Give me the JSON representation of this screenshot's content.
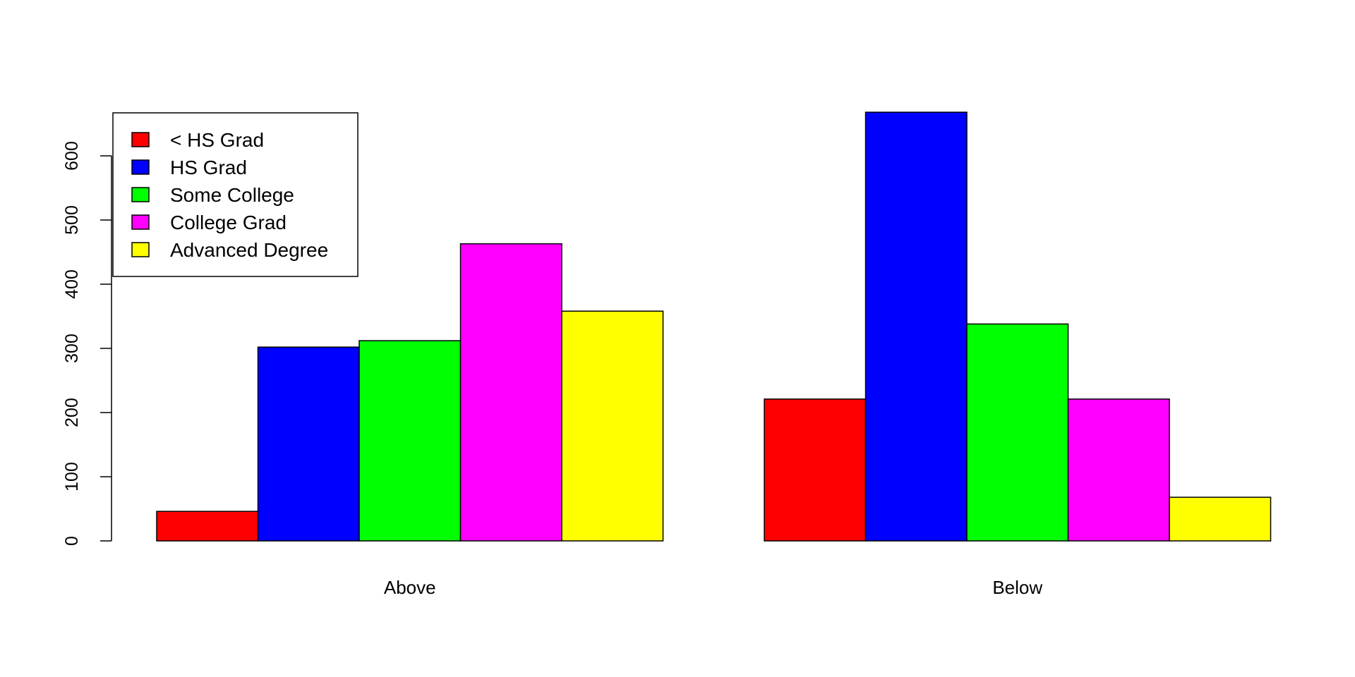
{
  "chart_data": {
    "type": "bar",
    "mode": "grouped",
    "categories": [
      "Above",
      "Below"
    ],
    "series": [
      {
        "name": "< HS Grad",
        "color": "#FF0000",
        "values": [
          46,
          221
        ]
      },
      {
        "name": "HS Grad",
        "color": "#0000FF",
        "values": [
          302,
          668
        ]
      },
      {
        "name": "Some College",
        "color": "#00FF00",
        "values": [
          312,
          338
        ]
      },
      {
        "name": "College Grad",
        "color": "#FF00FF",
        "values": [
          463,
          221
        ]
      },
      {
        "name": "Advanced Degree",
        "color": "#FFFF00",
        "values": [
          358,
          68
        ]
      }
    ],
    "y_ticks": [
      "0",
      "100",
      "200",
      "300",
      "400",
      "500",
      "600"
    ],
    "ylim": [
      0,
      668
    ],
    "legend_position": "top-left",
    "grid": false,
    "title": "",
    "xlabel": "",
    "ylabel": ""
  }
}
